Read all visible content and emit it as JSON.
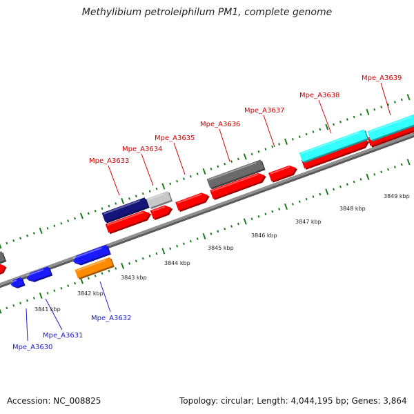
{
  "title": "Methylibium petroleiphilum PM1, complete genome",
  "footer": {
    "accession": "Accession: NC_008825",
    "summary": "Topology: circular; Length: 4,044,195 bp; Genes: 3,864"
  },
  "colors": {
    "forward_gene": "#ff0000",
    "reverse_gene": "#1a1aff",
    "forward_label": "#cc0000",
    "reverse_label": "#1a1acc",
    "backbone": "#909090",
    "tick": "#1a7a1a",
    "highlight_navy": "#14147a",
    "highlight_lightgray": "#c8c8c8",
    "highlight_gray": "#6a6a6a",
    "highlight_cyan": "#33ffff",
    "highlight_orange": "#ff8c00"
  },
  "scale": {
    "unit": "kbp",
    "labels": [
      "3841 kbp",
      "3842 kbp",
      "3843 kbp",
      "3844 kbp",
      "3845 kbp",
      "3846 kbp",
      "3847 kbp",
      "3848 kbp",
      "3849 kbp"
    ]
  },
  "genes_forward": [
    {
      "label": "Mpe_A3633"
    },
    {
      "label": "Mpe_A3634"
    },
    {
      "label": "Mpe_A3635"
    },
    {
      "label": "Mpe_A3636"
    },
    {
      "label": "Mpe_A3637"
    },
    {
      "label": "Mpe_A3638"
    },
    {
      "label": "Mpe_A3639"
    }
  ],
  "genes_reverse": [
    {
      "label": "Mpe_A3630"
    },
    {
      "label": "Mpe_A3631"
    },
    {
      "label": "Mpe_A3632"
    }
  ]
}
